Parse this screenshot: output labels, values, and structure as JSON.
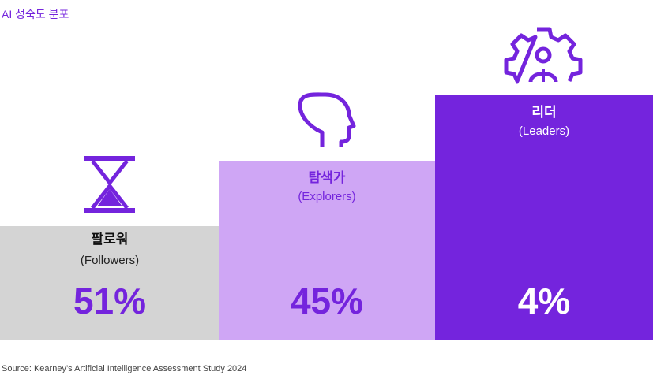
{
  "title": "AI 성숙도 분포",
  "tiers": [
    {
      "name": "팔로워",
      "label": "(Followers)",
      "share": "51%"
    },
    {
      "name": "탐색가",
      "label": "(Explorers)",
      "share": "45%"
    },
    {
      "name": "리더",
      "label": "(Leaders)",
      "share": "4%"
    }
  ],
  "source": "Source: Kearney’s Artificial Intelligence Assessment Study 2024"
}
